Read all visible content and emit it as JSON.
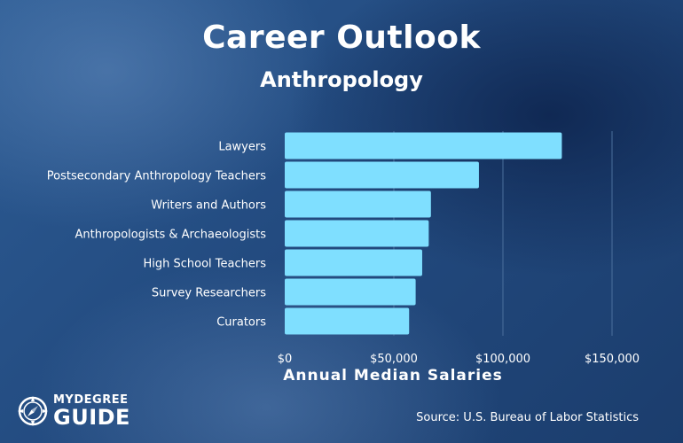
{
  "header": {
    "title": "Career Outlook",
    "subtitle": "Anthropology"
  },
  "footer": {
    "source": "Source: U.S. Bureau of Labor Statistics",
    "logo_top": "MYDEGREE",
    "logo_bottom": "GUIDE"
  },
  "colors": {
    "bar": "#7fdfff",
    "gridline": "#4b6f9c",
    "text": "#ffffff"
  },
  "chart_data": {
    "type": "bar",
    "orientation": "horizontal",
    "categories": [
      "Lawyers",
      "Postsecondary Anthropology Teachers",
      "Writers and Authors",
      "Anthropologists & Archaeologists",
      "High School Teachers",
      "Survey Researchers",
      "Curators"
    ],
    "values": [
      127000,
      89000,
      67000,
      66000,
      63000,
      60000,
      57000
    ],
    "xlabel": "Annual Median Salaries",
    "xlim": [
      0,
      150000
    ],
    "xticks": [
      0,
      50000,
      100000,
      150000
    ],
    "xtick_labels": [
      "$0",
      "$50,000",
      "$100,000",
      "$150,000"
    ],
    "grid": "vertical",
    "legend": "none"
  }
}
